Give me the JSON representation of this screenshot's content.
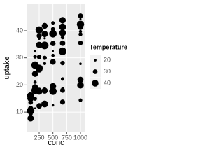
{
  "chart_data": {
    "type": "scatter",
    "x_label": "conc",
    "y_label": "uptake",
    "legend_title": "Temperature",
    "color": "#000000",
    "grid": true,
    "x": [
      95,
      175,
      250,
      350,
      500,
      675,
      1000,
      95,
      175,
      250,
      350,
      500,
      675,
      1000,
      95,
      175,
      250,
      350,
      500,
      675,
      1000,
      95,
      175,
      250,
      350,
      500,
      675,
      1000,
      95,
      175,
      250,
      350,
      500,
      675,
      1000,
      95,
      175,
      250,
      350,
      500,
      675,
      1000,
      95,
      175,
      250,
      350,
      500,
      675,
      1000,
      95,
      175,
      250,
      350,
      500,
      675,
      1000,
      95,
      175,
      250,
      350,
      500,
      675,
      1000,
      95,
      175,
      250,
      350,
      500,
      675,
      1000,
      95,
      175,
      250,
      350,
      500,
      675,
      1000,
      95,
      175,
      250,
      350,
      500,
      675,
      1000
    ],
    "y": [
      16.0,
      30.4,
      34.8,
      37.2,
      35.3,
      39.2,
      39.7,
      13.6,
      27.3,
      37.1,
      41.8,
      40.6,
      41.4,
      44.3,
      16.2,
      32.4,
      40.3,
      42.1,
      42.9,
      43.9,
      45.5,
      14.2,
      24.1,
      30.3,
      34.6,
      32.5,
      35.4,
      38.7,
      15.1,
      21.0,
      38.1,
      34.0,
      38.9,
      39.6,
      41.4,
      9.3,
      27.3,
      35.0,
      38.8,
      38.6,
      37.5,
      42.4,
      11.3,
      19.4,
      25.8,
      27.9,
      28.5,
      28.1,
      27.8,
      10.5,
      14.9,
      18.1,
      18.9,
      19.5,
      22.2,
      21.9,
      10.6,
      19.2,
      26.2,
      30.0,
      30.9,
      32.4,
      35.5,
      7.7,
      11.4,
      12.3,
      13.0,
      12.5,
      13.7,
      14.4,
      10.6,
      18.0,
      17.9,
      17.9,
      17.9,
      18.9,
      19.9,
      10.5,
      15.1,
      17.6,
      17.7,
      17.7,
      18.0,
      20.2
    ],
    "size": [
      42,
      25,
      38,
      18,
      33,
      40,
      22,
      30,
      44,
      20,
      36,
      27,
      41,
      17,
      35,
      19,
      43,
      28,
      24,
      39,
      31,
      21,
      37,
      29,
      45,
      16,
      34,
      26,
      40,
      23,
      32,
      18,
      44,
      20,
      36,
      27,
      41,
      15,
      38,
      30,
      25,
      43,
      33,
      18,
      40,
      22,
      35,
      29,
      19,
      44,
      26,
      31,
      17,
      39,
      24,
      37,
      20,
      36,
      42,
      28,
      23,
      45,
      30,
      38,
      16,
      34,
      41,
      19,
      32,
      25,
      29,
      43,
      21,
      37,
      26,
      18,
      40,
      35,
      22,
      39,
      24,
      44,
      31,
      27
    ],
    "xlim": [
      21,
      1089
    ],
    "xticks": [
      250,
      500,
      750,
      1000
    ],
    "ylim": [
      2.8,
      49.8
    ],
    "yticks": [
      10,
      20,
      30,
      40
    ],
    "size_lim": [
      15,
      45
    ],
    "size_ticks": [
      20,
      30,
      40
    ]
  }
}
